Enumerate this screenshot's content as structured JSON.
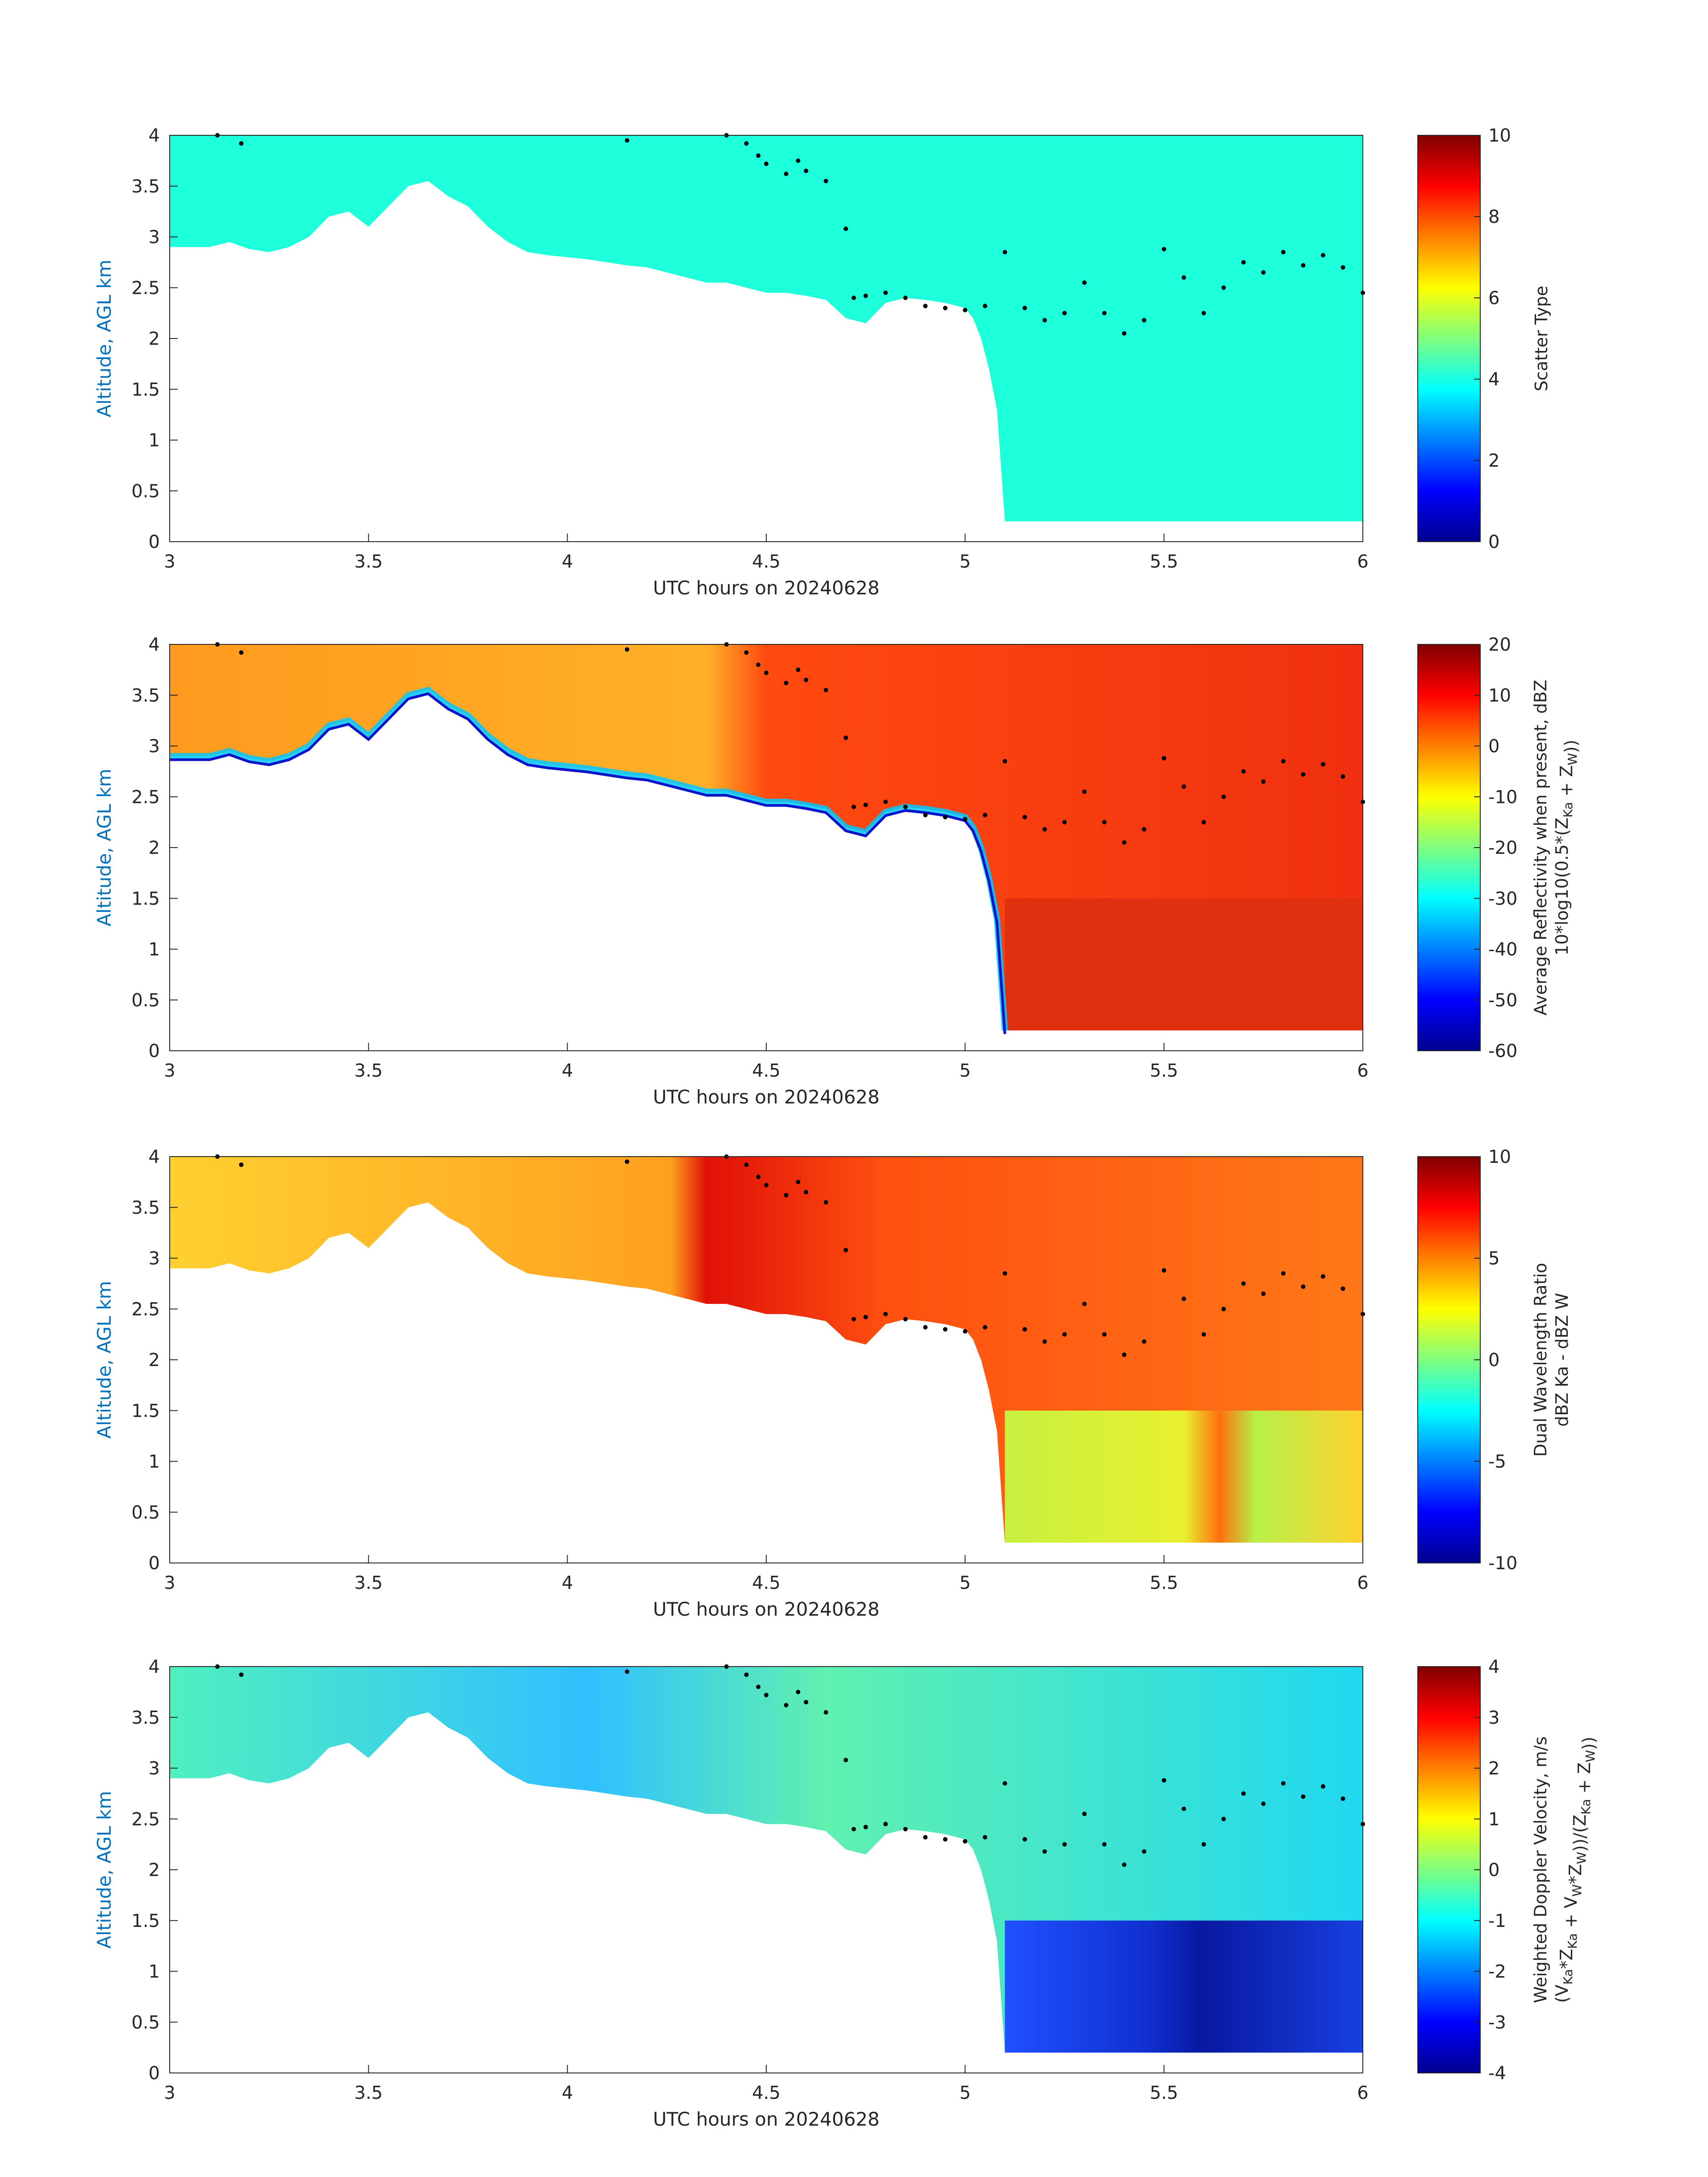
{
  "chart_data": [
    {
      "type": "heatmap",
      "name": "scatter-type",
      "xlabel": "UTC hours on 20240628",
      "ylabel": "Altitude, AGL km",
      "xlim": [
        3,
        6
      ],
      "ylim": [
        0,
        4
      ],
      "xticks": [
        "3",
        "3.5",
        "4",
        "4.5",
        "5",
        "5.5",
        "6"
      ],
      "yticks": [
        "0",
        "0.5",
        "1",
        "1.5",
        "2",
        "2.5",
        "3",
        "3.5",
        "4"
      ],
      "colorbar": {
        "label_lines": [
          "Scatter Type"
        ],
        "clim": [
          0,
          10
        ],
        "ticks": [
          "0",
          "2",
          "4",
          "6",
          "8",
          "10"
        ]
      }
    },
    {
      "type": "heatmap",
      "name": "reflectivity",
      "xlabel": "UTC hours on 20240628",
      "ylabel": "Altitude, AGL km",
      "xlim": [
        3,
        6
      ],
      "ylim": [
        0,
        4
      ],
      "xticks": [
        "3",
        "3.5",
        "4",
        "4.5",
        "5",
        "5.5",
        "6"
      ],
      "yticks": [
        "0",
        "0.5",
        "1",
        "1.5",
        "2",
        "2.5",
        "3",
        "3.5",
        "4"
      ],
      "colorbar": {
        "label_lines": [
          "Average Reflectivity when present, dBZ",
          "10*log10(0.5*(Z_Ka + Z_W))"
        ],
        "clim": [
          -60,
          20
        ],
        "ticks": [
          "-60",
          "-50",
          "-40",
          "-30",
          "-20",
          "-10",
          "0",
          "10",
          "20"
        ]
      }
    },
    {
      "type": "heatmap",
      "name": "dual-wavelength-ratio",
      "xlabel": "UTC hours on 20240628",
      "ylabel": "Altitude, AGL km",
      "xlim": [
        3,
        6
      ],
      "ylim": [
        0,
        4
      ],
      "xticks": [
        "3",
        "3.5",
        "4",
        "4.5",
        "5",
        "5.5",
        "6"
      ],
      "yticks": [
        "0",
        "0.5",
        "1",
        "1.5",
        "2",
        "2.5",
        "3",
        "3.5",
        "4"
      ],
      "colorbar": {
        "label_lines": [
          "Dual Wavelength Ratio",
          "dBZ Ka - dBZ W"
        ],
        "clim": [
          -10,
          10
        ],
        "ticks": [
          "-10",
          "-5",
          "0",
          "5",
          "10"
        ]
      }
    },
    {
      "type": "heatmap",
      "name": "doppler-velocity",
      "xlabel": "UTC hours on 20240628",
      "ylabel": "Altitude, AGL km",
      "xlim": [
        3,
        6
      ],
      "ylim": [
        0,
        4
      ],
      "xticks": [
        "3",
        "3.5",
        "4",
        "4.5",
        "5",
        "5.5",
        "6"
      ],
      "yticks": [
        "0",
        "0.5",
        "1",
        "1.5",
        "2",
        "2.5",
        "3",
        "3.5",
        "4"
      ],
      "colorbar": {
        "label_lines": [
          "Weighted Doppler Velocity, m/s",
          "(V_Ka*Z_Ka + V_W*Z_W))/(Z_Ka + Z_W))"
        ],
        "clim": [
          -4,
          4
        ],
        "ticks": [
          "-4",
          "-3",
          "-2",
          "-1",
          "0",
          "1",
          "2",
          "3",
          "4"
        ]
      }
    }
  ],
  "echo_top_km": [
    [
      3.0,
      2.9
    ],
    [
      3.05,
      2.9
    ],
    [
      3.1,
      2.9
    ],
    [
      3.15,
      2.95
    ],
    [
      3.2,
      2.88
    ],
    [
      3.25,
      2.85
    ],
    [
      3.3,
      2.9
    ],
    [
      3.35,
      3.0
    ],
    [
      3.4,
      3.2
    ],
    [
      3.45,
      3.25
    ],
    [
      3.5,
      3.1
    ],
    [
      3.55,
      3.3
    ],
    [
      3.6,
      3.5
    ],
    [
      3.65,
      3.55
    ],
    [
      3.7,
      3.4
    ],
    [
      3.75,
      3.3
    ],
    [
      3.8,
      3.1
    ],
    [
      3.85,
      2.95
    ],
    [
      3.9,
      2.85
    ],
    [
      3.95,
      2.82
    ],
    [
      4.0,
      2.8
    ],
    [
      4.05,
      2.78
    ],
    [
      4.1,
      2.75
    ],
    [
      4.15,
      2.72
    ],
    [
      4.2,
      2.7
    ],
    [
      4.25,
      2.65
    ],
    [
      4.3,
      2.6
    ],
    [
      4.35,
      2.55
    ],
    [
      4.4,
      2.55
    ],
    [
      4.45,
      2.5
    ],
    [
      4.5,
      2.45
    ],
    [
      4.55,
      2.45
    ],
    [
      4.6,
      2.42
    ],
    [
      4.65,
      2.38
    ],
    [
      4.7,
      2.2
    ],
    [
      4.75,
      2.15
    ],
    [
      4.8,
      2.35
    ],
    [
      4.85,
      2.4
    ],
    [
      4.9,
      2.38
    ],
    [
      4.95,
      2.35
    ],
    [
      5.0,
      2.3
    ],
    [
      5.02,
      2.2
    ],
    [
      5.04,
      2.0
    ],
    [
      5.06,
      1.7
    ],
    [
      5.08,
      1.3
    ],
    [
      5.1,
      0.2
    ],
    [
      6.0,
      0.2
    ]
  ],
  "dot_series_km": [
    [
      3.12,
      4.0
    ],
    [
      3.18,
      3.92
    ],
    [
      4.15,
      3.95
    ],
    [
      4.4,
      4.0
    ],
    [
      4.45,
      3.92
    ],
    [
      4.48,
      3.8
    ],
    [
      4.5,
      3.72
    ],
    [
      4.55,
      3.62
    ],
    [
      4.58,
      3.75
    ],
    [
      4.6,
      3.65
    ],
    [
      4.65,
      3.55
    ],
    [
      4.7,
      3.08
    ],
    [
      4.72,
      2.4
    ],
    [
      4.75,
      2.42
    ],
    [
      4.8,
      2.45
    ],
    [
      4.85,
      2.4
    ],
    [
      4.9,
      2.32
    ],
    [
      4.95,
      2.3
    ],
    [
      5.0,
      2.28
    ],
    [
      5.05,
      2.32
    ],
    [
      5.1,
      2.85
    ],
    [
      5.15,
      2.3
    ],
    [
      5.2,
      2.18
    ],
    [
      5.25,
      2.25
    ],
    [
      5.3,
      2.55
    ],
    [
      5.35,
      2.25
    ],
    [
      5.4,
      2.05
    ],
    [
      5.45,
      2.18
    ],
    [
      5.5,
      2.88
    ],
    [
      5.55,
      2.6
    ],
    [
      5.6,
      2.25
    ],
    [
      5.65,
      2.5
    ],
    [
      5.7,
      2.75
    ],
    [
      5.75,
      2.65
    ],
    [
      5.8,
      2.85
    ],
    [
      5.85,
      2.72
    ],
    [
      5.9,
      2.82
    ],
    [
      5.95,
      2.7
    ],
    [
      6.0,
      2.45
    ]
  ]
}
